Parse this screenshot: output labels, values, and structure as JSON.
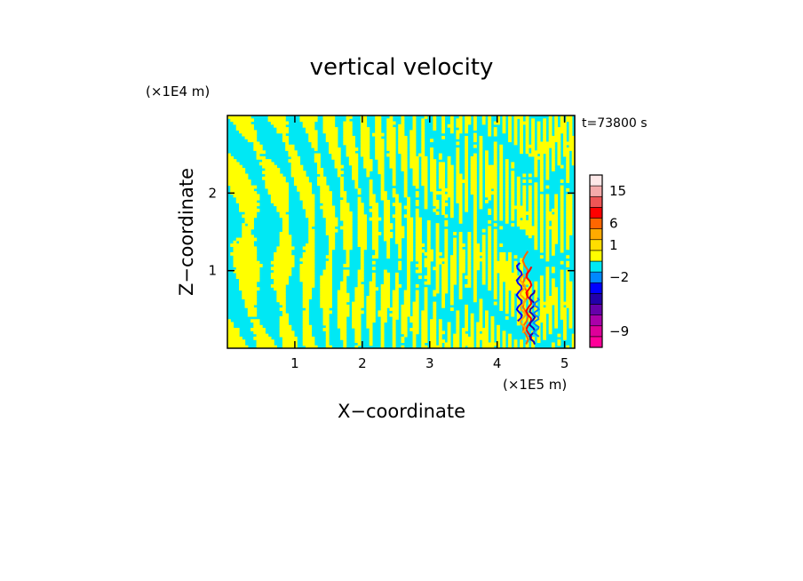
{
  "chart_data": {
    "type": "heatmap",
    "title": "vertical velocity",
    "xlabel": "X−coordinate",
    "ylabel": "Z−coordinate",
    "x_unit_label": "(×1E5 m)",
    "y_unit_label": "(×1E4 m)",
    "time_label": "t=73800 s",
    "xlim": [
      0,
      5.15
    ],
    "ylim": [
      0,
      3.0
    ],
    "x_ticks": [
      {
        "value": 1,
        "label": "1"
      },
      {
        "value": 2,
        "label": "2"
      },
      {
        "value": 3,
        "label": "3"
      },
      {
        "value": 4,
        "label": "4"
      },
      {
        "value": 5,
        "label": "5"
      }
    ],
    "y_ticks": [
      {
        "value": 1,
        "label": "1"
      },
      {
        "value": 2,
        "label": "2"
      }
    ],
    "field_colors": {
      "positive_small": "#ffff00",
      "negative_small": "#00e8f4"
    },
    "colorbar": {
      "levels": [
        {
          "color": "#ff0099",
          "label": ""
        },
        {
          "color": "#dd0099",
          "label": "−9"
        },
        {
          "color": "#aa00aa",
          "label": ""
        },
        {
          "color": "#6600aa",
          "label": ""
        },
        {
          "color": "#2200aa",
          "label": ""
        },
        {
          "color": "#0000ff",
          "label": ""
        },
        {
          "color": "#0088ff",
          "label": "−2"
        },
        {
          "color": "#00e8f4",
          "label": ""
        },
        {
          "color": "#ffff00",
          "label": ""
        },
        {
          "color": "#ffdd00",
          "label": "1"
        },
        {
          "color": "#ffaa00",
          "label": ""
        },
        {
          "color": "#ff6600",
          "label": "6"
        },
        {
          "color": "#ff0000",
          "label": ""
        },
        {
          "color": "#ee5555",
          "label": ""
        },
        {
          "color": "#f4aaaa",
          "label": "15"
        },
        {
          "color": "#fde8e8",
          "label": ""
        }
      ]
    }
  }
}
